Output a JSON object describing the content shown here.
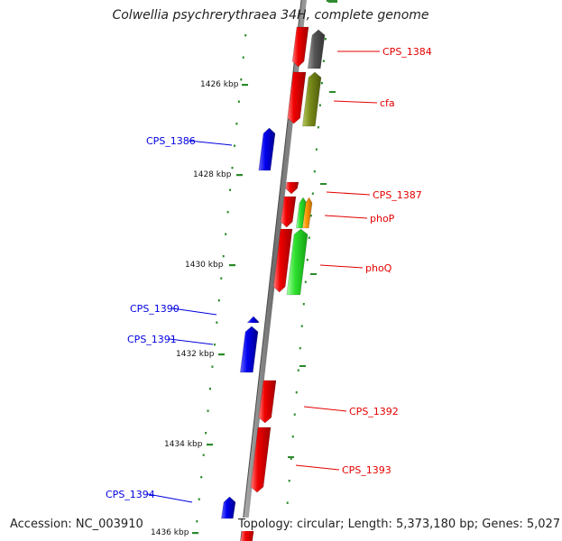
{
  "title": "Colwellia psychrerythraea 34H, complete genome",
  "accession": "Accession: NC_003910",
  "topology": "Topology: circular; Length: 5,373,180 bp; Genes: 5,027",
  "colors": {
    "forward_strand": "#e40000",
    "reverse_strand": "#0000e0",
    "gray_gene": "#5a5a5a",
    "olive_gene": "#7a8c1a",
    "green_gene": "#2ee02e",
    "orange_gene": "#ff9a00",
    "tick": "#2a8a2a",
    "axis": "#7a7a7a"
  },
  "kbp_labels": [
    "1426 kbp",
    "1428 kbp",
    "1430 kbp",
    "1432 kbp",
    "1434 kbp",
    "1436 kbp"
  ],
  "forward_labels": [
    "CPS_1384",
    "cfa",
    "CPS_1387",
    "phoP",
    "phoQ",
    "CPS_1392",
    "CPS_1393"
  ],
  "reverse_labels": [
    "CPS_1386",
    "CPS_1390",
    "CPS_1391",
    "CPS_1394"
  ]
}
